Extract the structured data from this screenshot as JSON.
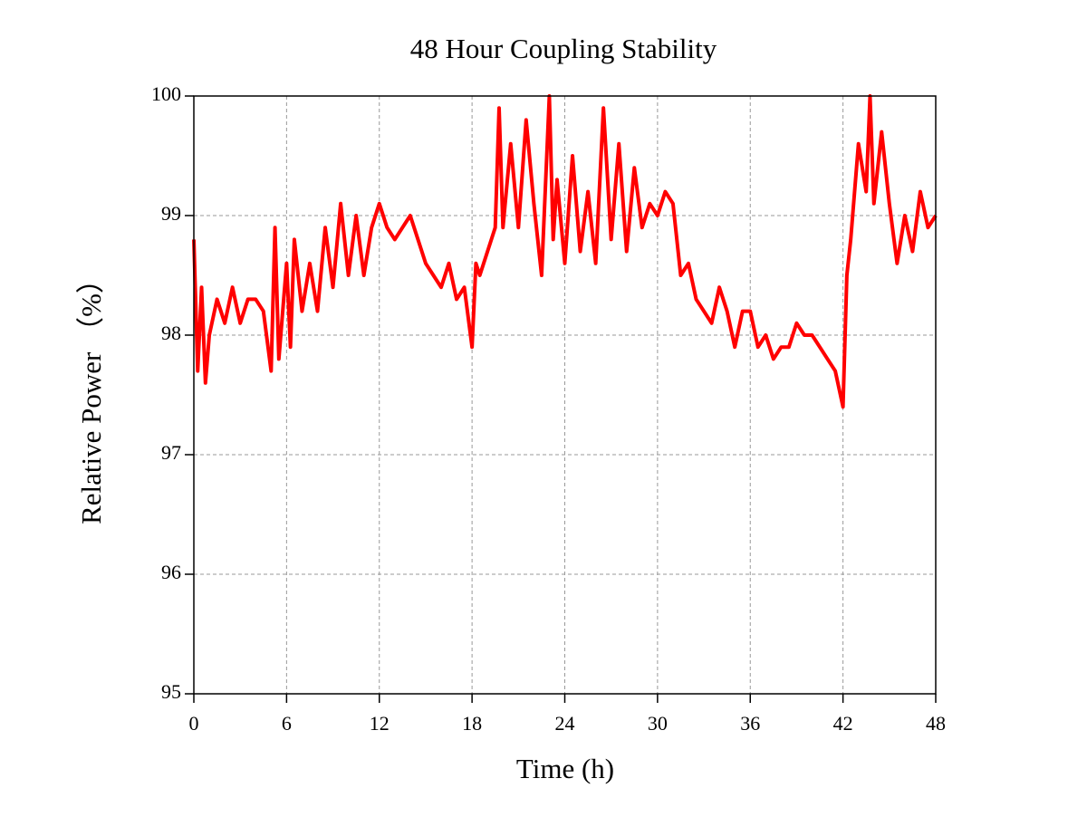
{
  "chart_data": {
    "type": "line",
    "title": "48 Hour Coupling Stability",
    "x_label": "Time (h)",
    "y_label": "Relative Power （%）",
    "color": "#ff0000",
    "grid": true,
    "xlim": [
      0,
      48
    ],
    "ylim": [
      95,
      100
    ],
    "xticks": [
      0,
      6,
      12,
      18,
      24,
      30,
      36,
      42,
      48
    ],
    "yticks": [
      95,
      96,
      97,
      98,
      99,
      100
    ],
    "x": [
      0,
      0.25,
      0.5,
      0.75,
      1,
      1.5,
      2,
      2.5,
      3,
      3.5,
      4,
      4.5,
      5,
      5.25,
      5.5,
      6,
      6.25,
      6.5,
      7,
      7.5,
      8,
      8.5,
      9,
      9.5,
      10,
      10.5,
      11,
      11.5,
      12,
      12.5,
      13,
      13.5,
      14,
      14.5,
      15,
      15.5,
      16,
      16.5,
      17,
      17.5,
      18,
      18.25,
      18.5,
      19,
      19.5,
      19.75,
      20,
      20.5,
      21,
      21.5,
      22,
      22.5,
      23,
      23.25,
      23.5,
      24,
      24.5,
      25,
      25.5,
      26,
      26.5,
      27,
      27.5,
      28,
      28.5,
      29,
      29.5,
      30,
      30.5,
      31,
      31.5,
      32,
      32.5,
      33,
      33.5,
      34,
      34.5,
      35,
      35.5,
      36,
      36.5,
      37,
      37.5,
      38,
      38.5,
      39,
      39.5,
      40,
      40.5,
      41,
      41.5,
      42,
      42.25,
      42.5,
      43,
      43.5,
      43.75,
      44,
      44.5,
      45,
      45.5,
      46,
      46.5,
      47,
      47.5,
      48
    ],
    "values": [
      98.8,
      97.7,
      98.4,
      97.6,
      98.0,
      98.3,
      98.1,
      98.4,
      98.1,
      98.3,
      98.3,
      98.2,
      97.7,
      98.9,
      97.8,
      98.6,
      97.9,
      98.8,
      98.2,
      98.6,
      98.2,
      98.9,
      98.4,
      99.1,
      98.5,
      99.0,
      98.5,
      98.9,
      99.1,
      98.9,
      98.8,
      98.9,
      99.0,
      98.8,
      98.6,
      98.5,
      98.4,
      98.6,
      98.3,
      98.4,
      97.9,
      98.6,
      98.5,
      98.7,
      98.9,
      99.9,
      98.9,
      99.6,
      98.9,
      99.8,
      99.1,
      98.5,
      100,
      98.8,
      99.3,
      98.6,
      99.5,
      98.7,
      99.2,
      98.6,
      99.9,
      98.8,
      99.6,
      98.7,
      99.4,
      98.9,
      99.1,
      99.0,
      99.2,
      99.1,
      98.5,
      98.6,
      98.3,
      98.2,
      98.1,
      98.4,
      98.2,
      97.9,
      98.2,
      98.2,
      97.9,
      98.0,
      97.8,
      97.9,
      97.9,
      98.1,
      98.0,
      98.0,
      97.9,
      97.8,
      97.7,
      97.4,
      98.5,
      98.8,
      99.6,
      99.2,
      100.0,
      99.1,
      99.7,
      99.1,
      98.6,
      99.0,
      98.7,
      99.2,
      98.9,
      99.0
    ]
  }
}
